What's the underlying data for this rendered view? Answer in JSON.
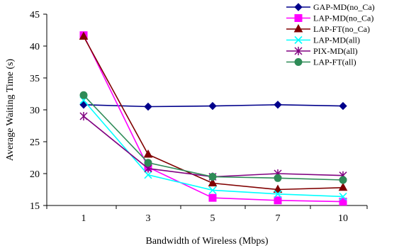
{
  "chart_data": {
    "type": "line",
    "title": "",
    "xlabel": "Bandwidth of Wireless (Mbps)",
    "ylabel": "Average Waiting Time (s)",
    "categories": [
      "1",
      "3",
      "5",
      "7",
      "10"
    ],
    "ylim": [
      15,
      45
    ],
    "yticks": [
      15,
      20,
      25,
      30,
      35,
      40,
      45
    ],
    "grid": false,
    "legend_position": "top-right",
    "series": [
      {
        "name": "GAP-MD(no_Ca)",
        "values": [
          30.8,
          30.5,
          30.6,
          30.8,
          30.6
        ],
        "color": "#00008B",
        "marker": "diamond"
      },
      {
        "name": "LAP-MD(no_Ca)",
        "values": [
          41.7,
          21.0,
          16.2,
          15.8,
          15.6
        ],
        "color": "#FF00FF",
        "marker": "square"
      },
      {
        "name": "LAP-FT(no_Ca)",
        "values": [
          41.5,
          23.0,
          18.5,
          17.5,
          17.8
        ],
        "color": "#800000",
        "marker": "triangle"
      },
      {
        "name": "LAP-MD(all)",
        "values": [
          31.5,
          19.8,
          17.4,
          16.8,
          16.4
        ],
        "color": "#00FFFF",
        "marker": "x"
      },
      {
        "name": "PIX-MD(all)",
        "values": [
          29.0,
          20.8,
          19.5,
          20.0,
          19.7
        ],
        "color": "#800080",
        "marker": "asterisk"
      },
      {
        "name": "LAP-FT(all)",
        "values": [
          32.3,
          21.7,
          19.5,
          19.3,
          19.0
        ],
        "color": "#2E8B57",
        "marker": "circle"
      }
    ]
  }
}
